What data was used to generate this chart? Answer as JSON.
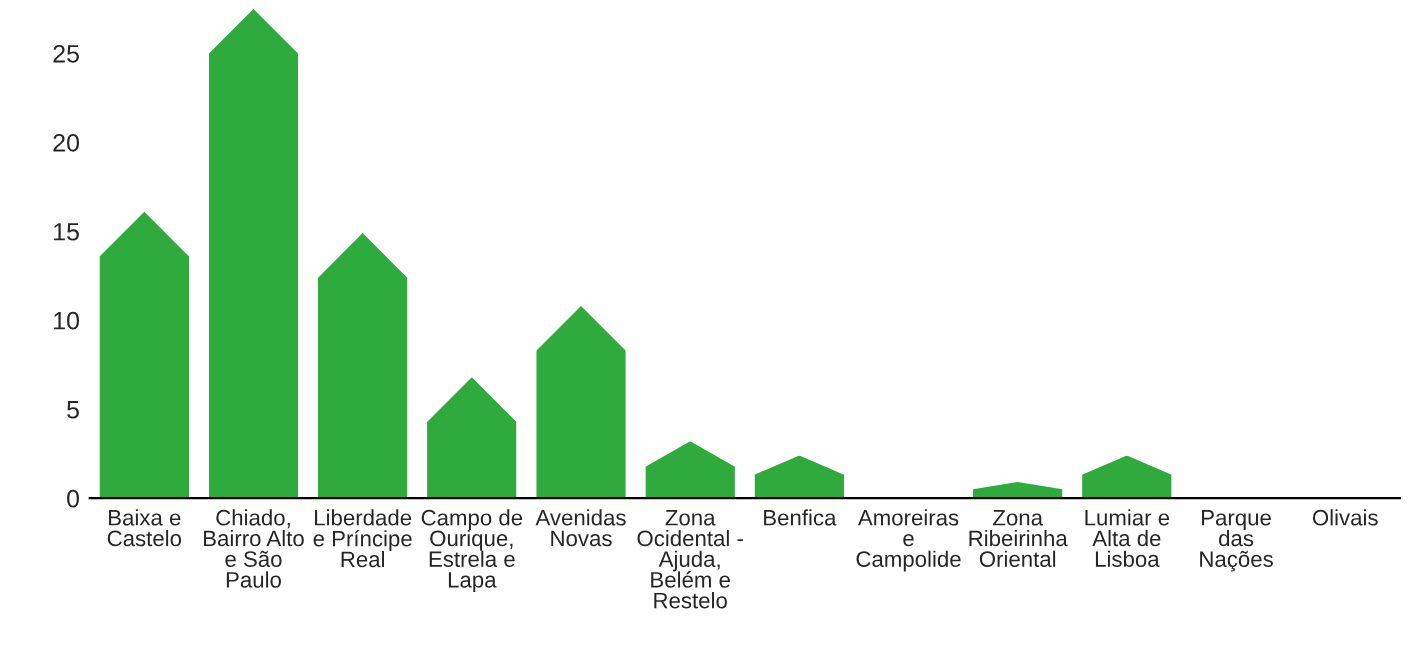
{
  "chart_data": {
    "type": "bar",
    "categories": [
      "Baixa e\nCastelo",
      "Chiado,\nBairro Alto\ne São\nPaulo",
      "Liberdade\ne Príncipe\nReal",
      "Campo de\nOurique,\nEstrela e\nLapa",
      "Avenidas\nNovas",
      "Zona\nOcidental -\nAjuda,\nBelém e\nRestelo",
      "Benfica",
      "Amoreiras\ne\nCampolide",
      "Zona\nRibeirinha\nOriental",
      "Lumiar e\nAlta de\nLisboa",
      "Parque\ndas\nNações",
      "Olivais"
    ],
    "values": [
      16.1,
      27.5,
      14.9,
      6.8,
      10.8,
      3.2,
      2.4,
      0,
      0.9,
      2.4,
      0,
      0
    ],
    "color": "#2faa3c",
    "ylim": [
      0,
      28
    ],
    "yticks": [
      0,
      5,
      10,
      15,
      20,
      25
    ],
    "grid": false,
    "legend": false
  }
}
